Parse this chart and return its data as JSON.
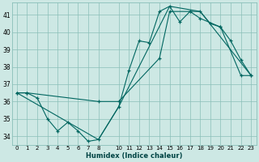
{
  "xlabel": "Humidex (Indice chaleur)",
  "bg_color": "#cde8e4",
  "grid_color": "#8abfb8",
  "line_color": "#006660",
  "xlim": [
    -0.5,
    23.5
  ],
  "ylim": [
    33.5,
    41.7
  ],
  "yticks": [
    34,
    35,
    36,
    37,
    38,
    39,
    40,
    41
  ],
  "xticks": [
    0,
    1,
    2,
    3,
    4,
    5,
    6,
    7,
    8,
    10,
    11,
    12,
    13,
    14,
    15,
    16,
    17,
    18,
    19,
    20,
    21,
    22,
    23
  ],
  "series1_x": [
    0,
    1,
    2,
    3,
    4,
    5,
    6,
    7,
    8,
    10,
    11,
    12,
    13,
    14,
    15,
    16,
    17,
    18,
    19,
    20,
    21,
    22,
    23
  ],
  "series1_y": [
    36.5,
    36.5,
    36.2,
    35.0,
    34.3,
    34.8,
    34.3,
    33.7,
    33.8,
    35.7,
    37.8,
    39.5,
    39.4,
    41.2,
    41.5,
    40.6,
    41.2,
    41.2,
    40.5,
    40.3,
    39.5,
    38.4,
    37.5
  ],
  "series2_x": [
    0,
    1,
    8,
    10,
    14,
    15,
    17,
    18,
    20,
    22,
    23
  ],
  "series2_y": [
    36.5,
    36.5,
    36.0,
    36.0,
    38.5,
    41.2,
    41.2,
    40.8,
    40.3,
    37.5,
    37.5
  ],
  "series3_x": [
    0,
    8,
    10,
    15,
    18,
    23
  ],
  "series3_y": [
    36.5,
    33.8,
    35.7,
    41.5,
    41.2,
    37.5
  ]
}
